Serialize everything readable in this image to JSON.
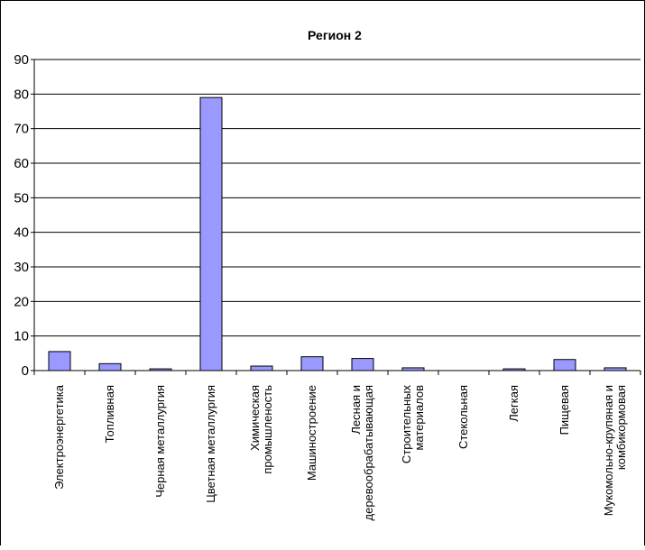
{
  "chart_data": {
    "type": "bar",
    "title": "Регион 2",
    "xlabel": "",
    "ylabel": "",
    "ylim": [
      0,
      90
    ],
    "yticks": [
      0,
      10,
      20,
      30,
      40,
      50,
      60,
      70,
      80,
      90
    ],
    "grid": true,
    "legend": "none",
    "bar_color": "#9999ff",
    "categories": [
      [
        "Электроэнергетика"
      ],
      [
        "Топливная"
      ],
      [
        "Черная металлургия"
      ],
      [
        "Цветная металлургия"
      ],
      [
        "Химическая",
        "промышленость"
      ],
      [
        "Машиностроение"
      ],
      [
        "Лесная и",
        "деревообрабатывающая"
      ],
      [
        "Строительных",
        "материалов"
      ],
      [
        "Стекольная"
      ],
      [
        "Легкая"
      ],
      [
        "Пищевая"
      ],
      [
        "Мукомольно-крупяная и",
        "комбикормовая"
      ]
    ],
    "values": [
      5.5,
      2,
      0.5,
      79,
      1.3,
      4,
      3.5,
      0.8,
      0,
      0.5,
      3.2,
      0.8
    ]
  }
}
